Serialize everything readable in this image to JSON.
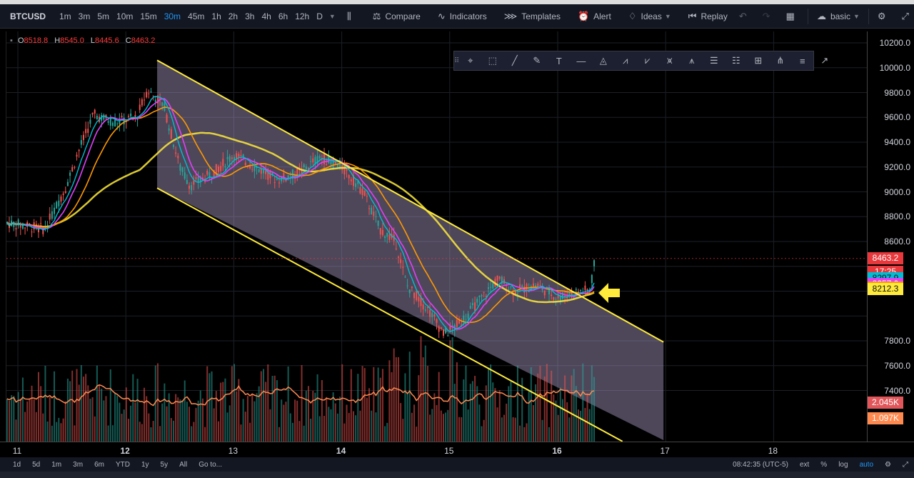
{
  "toolbar": {
    "symbol": "BTCUSD",
    "intervals": [
      "1m",
      "3m",
      "5m",
      "10m",
      "15m",
      "30m",
      "45m",
      "1h",
      "2h",
      "3h",
      "4h",
      "6h",
      "12h",
      "D"
    ],
    "active_interval": "30m",
    "compare_label": "Compare",
    "indicators_label": "Indicators",
    "templates_label": "Templates",
    "alert_label": "Alert",
    "ideas_label": "Ideas",
    "replay_label": "Replay",
    "layout_label": "basic"
  },
  "ohlc": {
    "o_label": "O",
    "o": "8518.8",
    "h_label": "H",
    "h": "8545.0",
    "l_label": "L",
    "l": "8445.6",
    "c_label": "C",
    "c": "8463.2"
  },
  "price_axis": {
    "labels": [
      "10200.0",
      "10000.0",
      "9800.0",
      "9600.0",
      "9400.0",
      "9200.0",
      "9000.0",
      "8800.0",
      "8600.0",
      "7800.0",
      "7600.0",
      "7400.0"
    ],
    "values": [
      10200,
      10000,
      9800,
      9600,
      9400,
      9200,
      9000,
      8800,
      8600,
      7800,
      7600,
      7400
    ]
  },
  "badges": [
    {
      "text": "8463.2",
      "color": "#e8383b",
      "price": 8463.2
    },
    {
      "text": "17:25",
      "color": "#e8383b",
      "price": 8355
    },
    {
      "text": "8297.9",
      "color": "#00bcd4",
      "price": 8297.9
    },
    {
      "text": "8257.0",
      "color": "#e040fb",
      "price": 8257.0
    },
    {
      "text": "8226.9",
      "color": "#ff9800",
      "price": 8226.9
    },
    {
      "text": "8212.3",
      "color": "#ffeb3b",
      "price": 8212.3
    },
    {
      "text": "2.045K",
      "color": "#e0565a",
      "price": 7300
    },
    {
      "text": "1.097K",
      "color": "#ff8a50",
      "price": 7170
    }
  ],
  "time_axis": {
    "labels": [
      "11",
      "12",
      "13",
      "14",
      "15",
      "16",
      "17",
      "18"
    ],
    "bold": [
      "12",
      "14",
      "16"
    ]
  },
  "bottombar": {
    "ranges": [
      "1d",
      "5d",
      "1m",
      "3m",
      "6m",
      "YTD",
      "1y",
      "5y",
      "All",
      "Go to..."
    ],
    "clock": "08:42:35 (UTC-5)",
    "ext": "ext",
    "pct": "%",
    "log": "log",
    "auto": "auto"
  },
  "colors": {
    "up": "#26a69a",
    "down": "#ef5350",
    "channel": "#ffeb3b",
    "channel_fill": "#b9a9d6",
    "ema_fast": "#00bcd4",
    "ema_mid": "#e040fb",
    "ema_slow": "#ff9800",
    "ma_long": "#ffeb3b",
    "arrow": "#ffeb3b"
  },
  "drawing_tools": [
    "crosshair-tool",
    "rectangle-tool",
    "trendline-tool",
    "brush-tool",
    "text-tool",
    "horizontal-line-tool",
    "triangle-tool",
    "xabcd-pattern-tool",
    "abcde-pattern-tool",
    "elliott-wave-tool",
    "cypher-pattern-tool",
    "fib-retracement-tool",
    "fib-extension-tool",
    "gann-box-tool",
    "pitchfork-tool",
    "parallel-channel-tool",
    "ray-tool"
  ]
}
